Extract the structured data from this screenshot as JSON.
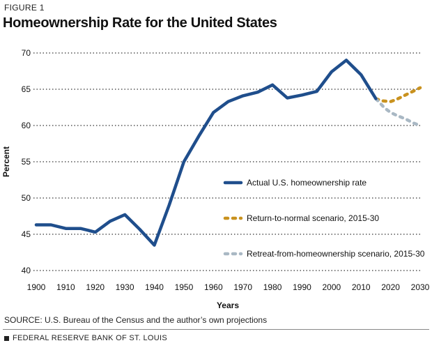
{
  "figure_label": "FIGURE 1",
  "source_text": "SOURCE: U.S. Bureau of the Census and the author’s own projections",
  "footer_text": "FEDERAL RESERVE BANK OF ST. LOUIS",
  "colors": {
    "actual": "#1f4e8c",
    "return": "#c9921f",
    "retreat": "#a9b8c4",
    "grid": "#333333"
  },
  "chart_data": {
    "type": "line",
    "title": "Homeownership Rate for the United States",
    "xlabel": "Years",
    "ylabel": "Percent",
    "xlim": [
      1900,
      2030
    ],
    "ylim": [
      40,
      70
    ],
    "xticks": [
      1900,
      1910,
      1920,
      1930,
      1940,
      1950,
      1960,
      1970,
      1980,
      1990,
      2000,
      2010,
      2020,
      2030
    ],
    "yticks": [
      40,
      45,
      50,
      55,
      60,
      65,
      70
    ],
    "grid": "horizontal dotted",
    "legend_position": "right-middle",
    "series": [
      {
        "name": "Actual U.S. homeownership rate",
        "style": "solid",
        "points": [
          [
            1900,
            46.3
          ],
          [
            1905,
            46.3
          ],
          [
            1910,
            45.8
          ],
          [
            1915,
            45.8
          ],
          [
            1920,
            45.3
          ],
          [
            1925,
            46.8
          ],
          [
            1930,
            47.7
          ],
          [
            1935,
            45.7
          ],
          [
            1940,
            43.5
          ],
          [
            1945,
            49.0
          ],
          [
            1950,
            55.0
          ],
          [
            1955,
            58.5
          ],
          [
            1960,
            61.8
          ],
          [
            1965,
            63.3
          ],
          [
            1970,
            64.1
          ],
          [
            1975,
            64.6
          ],
          [
            1980,
            65.6
          ],
          [
            1985,
            63.8
          ],
          [
            1990,
            64.2
          ],
          [
            1995,
            64.7
          ],
          [
            2000,
            67.4
          ],
          [
            2005,
            69.0
          ],
          [
            2010,
            67.0
          ],
          [
            2015,
            63.7
          ]
        ]
      },
      {
        "name": "Return-to-normal scenario, 2015-30",
        "style": "dashed",
        "points": [
          [
            2015,
            63.7
          ],
          [
            2017,
            63.4
          ],
          [
            2020,
            63.3
          ],
          [
            2022,
            63.6
          ],
          [
            2025,
            64.2
          ],
          [
            2028,
            64.8
          ],
          [
            2030,
            65.2
          ]
        ]
      },
      {
        "name": "Retreat-from-homeownership scenario, 2015-30",
        "style": "dashed",
        "points": [
          [
            2015,
            63.7
          ],
          [
            2018,
            62.4
          ],
          [
            2020,
            61.8
          ],
          [
            2022,
            61.4
          ],
          [
            2025,
            60.9
          ],
          [
            2028,
            60.3
          ],
          [
            2030,
            60.0
          ]
        ]
      }
    ]
  }
}
